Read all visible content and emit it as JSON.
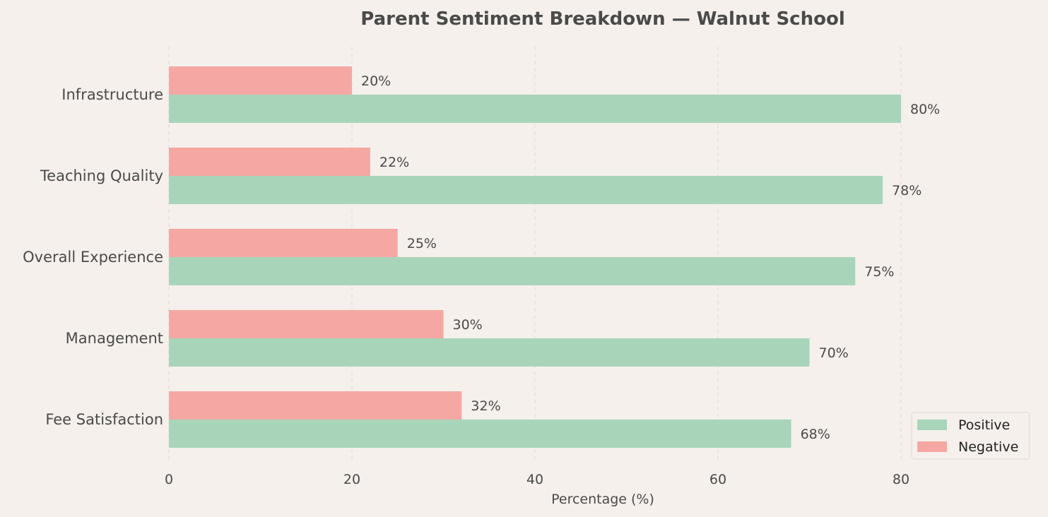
{
  "chart_data": {
    "type": "bar",
    "orientation": "horizontal",
    "title": "Parent Sentiment Breakdown — Walnut School",
    "xlabel": "Percentage (%)",
    "ylabel": "",
    "categories": [
      "Infrastructure",
      "Teaching Quality",
      "Overall Experience",
      "Management",
      "Fee Satisfaction"
    ],
    "series": [
      {
        "name": "Positive",
        "color": "#a8d5ba",
        "values": [
          80,
          78,
          75,
          70,
          68
        ],
        "labels": [
          "80%",
          "78%",
          "75%",
          "70%",
          "68%"
        ]
      },
      {
        "name": "Negative",
        "color": "#f5a8a3",
        "values": [
          20,
          22,
          25,
          30,
          32
        ],
        "labels": [
          "20%",
          "22%",
          "25%",
          "30%",
          "32%"
        ]
      }
    ],
    "xlim": [
      0,
      94
    ],
    "xticks": [
      0,
      20,
      40,
      60,
      80
    ],
    "xtick_labels": [
      "0",
      "20",
      "40",
      "60",
      "80"
    ],
    "grid": "vertical dashed",
    "legend_position": "bottom-right",
    "background": "#f5f0eb"
  }
}
